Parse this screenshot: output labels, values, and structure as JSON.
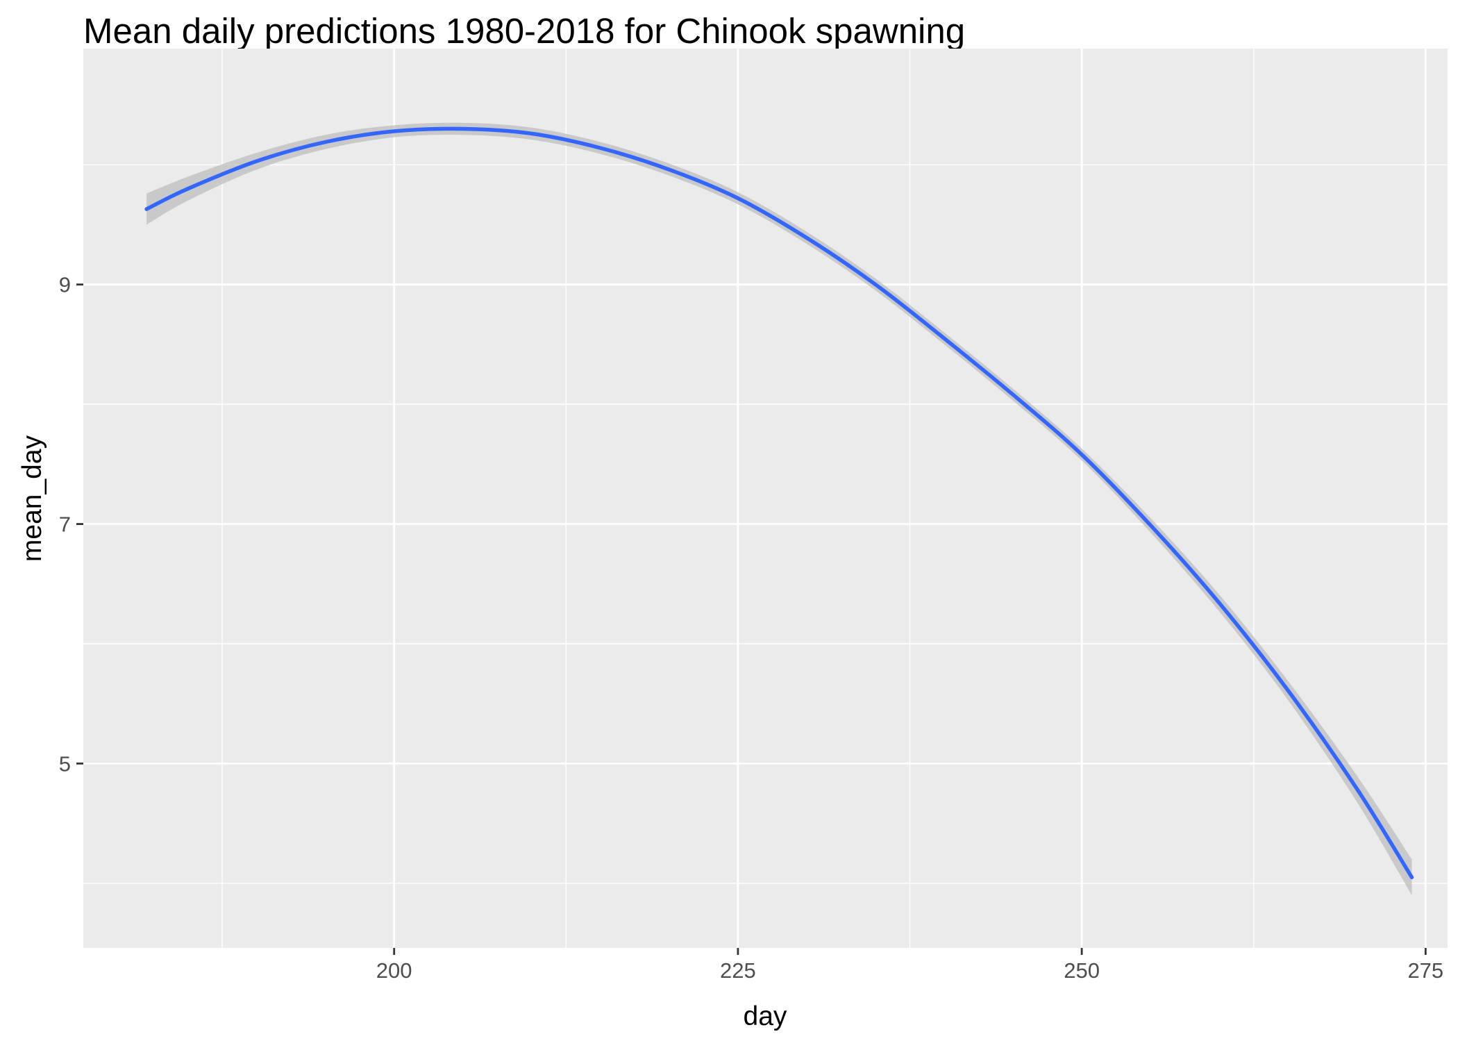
{
  "chart_data": {
    "type": "line",
    "title": "Mean daily predictions 1980-2018 for Chinook spawning",
    "xlabel": "day",
    "ylabel": "mean_day",
    "xlim": [
      177.4,
      276.6
    ],
    "ylim": [
      3.46,
      10.97
    ],
    "x_ticks": [
      200,
      225,
      250,
      275
    ],
    "x_tick_labels": [
      "200",
      "225",
      "250",
      "275"
    ],
    "y_ticks": [
      5,
      7,
      9
    ],
    "y_tick_labels": [
      "5",
      "7",
      "9"
    ],
    "x_minor": [
      187.5,
      212.5,
      237.5,
      262.5
    ],
    "y_minor": [
      4,
      6,
      8,
      10
    ],
    "grid": true,
    "panel_background": "#ebebeb",
    "line_color": "#3366ff",
    "ribbon_color": "#bebebe",
    "series": [
      {
        "x": [
          182,
          185,
          190,
          195,
          200,
          205,
          210,
          215,
          220,
          225,
          230,
          235,
          240,
          245,
          250,
          255,
          260,
          265,
          270,
          274
        ],
        "values": [
          9.63,
          9.8,
          10.03,
          10.19,
          10.28,
          10.3,
          10.26,
          10.14,
          9.96,
          9.72,
          9.39,
          9.0,
          8.55,
          8.08,
          7.58,
          6.99,
          6.34,
          5.61,
          4.79,
          4.05
        ],
        "ribbon_halfwidth": [
          0.13,
          0.1,
          0.07,
          0.06,
          0.05,
          0.05,
          0.05,
          0.05,
          0.05,
          0.05,
          0.05,
          0.05,
          0.05,
          0.05,
          0.05,
          0.06,
          0.07,
          0.08,
          0.11,
          0.15
        ]
      }
    ]
  }
}
